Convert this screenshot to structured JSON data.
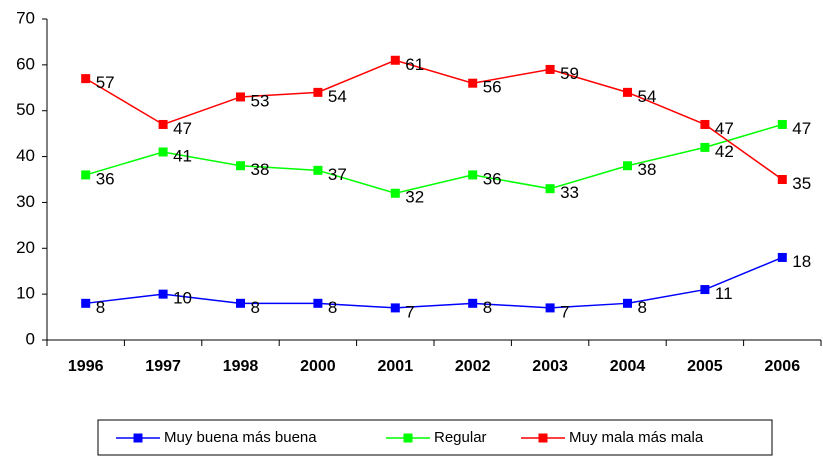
{
  "chart_data": {
    "type": "line",
    "categories": [
      "1996",
      "1997",
      "1998",
      "2000",
      "2001",
      "2002",
      "2003",
      "2004",
      "2005",
      "2006"
    ],
    "series": [
      {
        "name": "Muy buena más  buena",
        "color": "#0000ff",
        "values": [
          8,
          10,
          8,
          8,
          7,
          8,
          7,
          8,
          11,
          18
        ]
      },
      {
        "name": "Regular",
        "color": "#00ff00",
        "values": [
          36,
          41,
          38,
          37,
          32,
          36,
          33,
          38,
          42,
          47
        ]
      },
      {
        "name": "Muy mala más mala",
        "color": "#ff0000",
        "values": [
          57,
          47,
          53,
          54,
          61,
          56,
          59,
          54,
          47,
          35
        ]
      }
    ],
    "ylim": [
      0,
      70
    ],
    "yticks": [
      0,
      10,
      20,
      30,
      40,
      50,
      60,
      70
    ],
    "grid": false,
    "legend": "bottom"
  }
}
